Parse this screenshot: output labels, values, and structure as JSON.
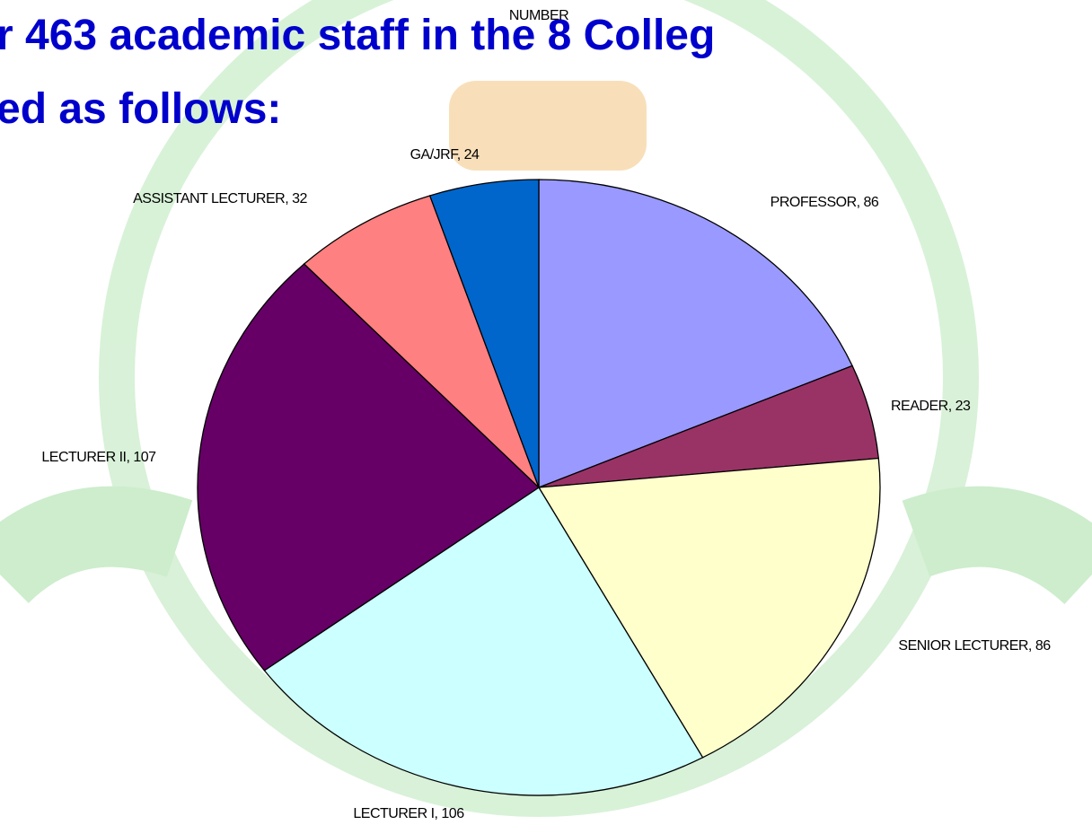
{
  "slide": {
    "title_lines": [
      "r 463 academic staff in the 8 Colleg",
      "ed as follows:"
    ]
  },
  "chart_data": {
    "type": "pie",
    "title": "NUMBER",
    "categories": [
      "PROFESSOR",
      "READER",
      "SENIOR LECTURER",
      "LECTURER I",
      "LECTURER II",
      "ASSISTANT LECTURER",
      "GA/JRF"
    ],
    "values": [
      86,
      23,
      86,
      106,
      107,
      32,
      24
    ],
    "colors": [
      "#9999ff",
      "#993366",
      "#ffffcc",
      "#ccffff",
      "#660066",
      "#ff8080",
      "#0066cc"
    ],
    "label_separator": ", "
  }
}
